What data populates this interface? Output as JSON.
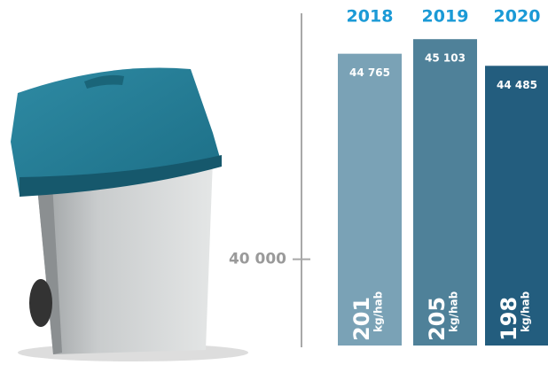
{
  "chart_data": {
    "type": "bar",
    "categories": [
      "2018",
      "2019",
      "2020"
    ],
    "values": [
      44765,
      45103,
      44485
    ],
    "value_labels": [
      "44 765",
      "45 103",
      "44 485"
    ],
    "colors": [
      "#7aa2b6",
      "#4f8199",
      "#235d7e"
    ],
    "bar_labels": [
      "201",
      "205",
      "198"
    ],
    "bar_label_unit": "kg/hab",
    "ylim": [
      38000,
      45600
    ],
    "yticks": [
      {
        "value": 40000,
        "label": "40 000"
      }
    ]
  }
}
